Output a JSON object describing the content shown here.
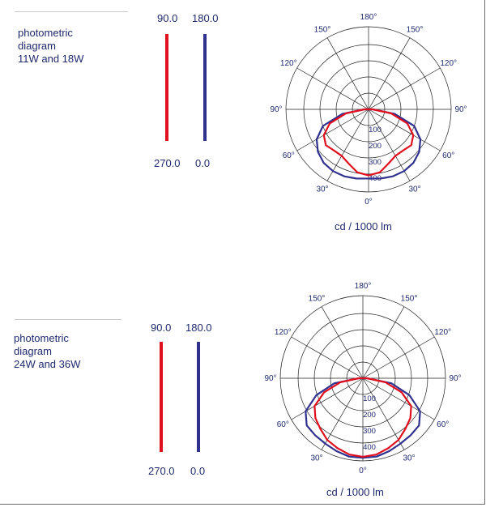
{
  "colors": {
    "red": "#e0101e",
    "blue": "#30318f",
    "grid": "#222222",
    "text": "#1f2a6e"
  },
  "diagrams": [
    {
      "caption": [
        "photometric",
        "diagram",
        "11W and 18W"
      ],
      "legend": {
        "red_top": "90.0",
        "blue_top": "180.0",
        "red_bottom": "270.0",
        "blue_bottom": "0.0"
      },
      "unit": "cd / 1000 lm",
      "angles": [
        "180°",
        "150°",
        "150°",
        "120°",
        "120°",
        "90°",
        "90°",
        "60°",
        "60°",
        "30°",
        "30°",
        "0°"
      ],
      "rings": [
        "100",
        "200",
        "300",
        "400"
      ],
      "chart_data": {
        "type": "polar",
        "angle_unit": "deg",
        "radial_max": 400,
        "series": [
          {
            "color": "blue",
            "angles": [
              0,
              10,
              20,
              30,
              40,
              50,
              60,
              70,
              80,
              90
            ],
            "values": [
              335,
              340,
              345,
              345,
              338,
              320,
              290,
              235,
              130,
              20
            ]
          },
          {
            "color": "red",
            "angles": [
              0,
              10,
              20,
              30,
              40,
              50,
              60,
              70,
              80,
              90
            ],
            "values": [
              320,
              310,
              280,
              260,
              260,
              270,
              250,
              200,
              110,
              20
            ]
          }
        ]
      }
    },
    {
      "caption": [
        "photometric",
        "diagram",
        "24W and 36W"
      ],
      "legend": {
        "red_top": "90.0",
        "blue_top": "180.0",
        "red_bottom": "270.0",
        "blue_bottom": "0.0"
      },
      "unit": "cd / 1000 lm",
      "angles": [
        "180°",
        "150°",
        "150°",
        "120°",
        "120°",
        "90°",
        "90°",
        "60°",
        "60°",
        "30°",
        "30°",
        "0°"
      ],
      "rings": [
        "100",
        "200",
        "300",
        "400"
      ],
      "chart_data": {
        "type": "polar",
        "angle_unit": "deg",
        "radial_max": 400,
        "series": [
          {
            "color": "blue",
            "angles": [
              0,
              10,
              20,
              30,
              40,
              50,
              60,
              70,
              80,
              90
            ],
            "values": [
              385,
              385,
              375,
              365,
              360,
              355,
              320,
              240,
              140,
              20
            ]
          },
          {
            "color": "red",
            "angles": [
              0,
              10,
              20,
              30,
              40,
              50,
              60,
              70,
              80,
              90
            ],
            "values": [
              380,
              375,
              360,
              345,
              320,
              300,
              270,
              200,
              110,
              20
            ]
          }
        ]
      }
    }
  ]
}
